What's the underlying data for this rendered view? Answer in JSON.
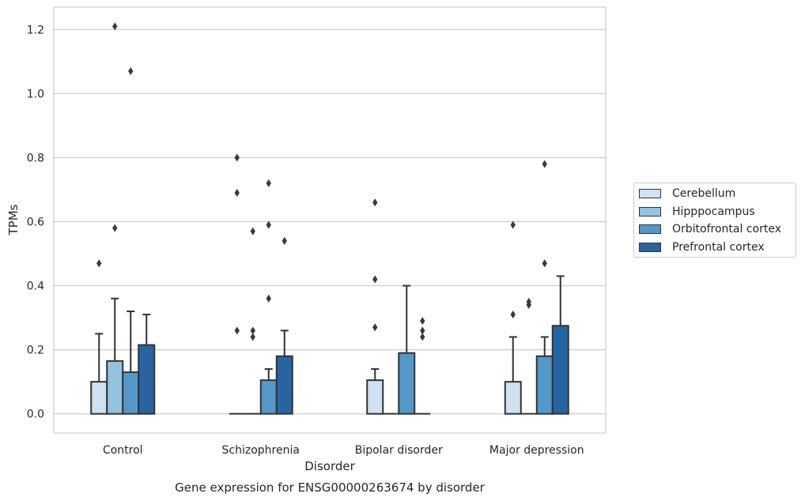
{
  "chart_data": {
    "type": "bar",
    "title": "Gene expression for ENSG00000263674 by disorder",
    "xlabel": "Disorder",
    "ylabel": "TPMs",
    "ylim": [
      -0.06,
      1.27
    ],
    "yticks": [
      "0.0",
      "0.2",
      "0.4",
      "0.6",
      "0.8",
      "1.0",
      "1.2"
    ],
    "categories": [
      "Control",
      "Schizophrenia",
      "Bipolar disorder",
      "Major depression"
    ],
    "grid": true,
    "legend_position": "right",
    "series": [
      {
        "name": "Cerebellum",
        "color": "#d0e1f1",
        "values": [
          0.1,
          0.0,
          0.105,
          0.1
        ],
        "whisker": [
          0.25,
          null,
          0.14,
          0.24
        ],
        "outliers": [
          [
            0.47
          ],
          [
            0.26,
            0.69,
            0.8
          ],
          [
            0.27,
            0.42,
            0.66
          ],
          [
            0.31,
            0.59
          ]
        ]
      },
      {
        "name": "Hipppocampus",
        "color": "#93c3df",
        "values": [
          0.165,
          0.0,
          0.0,
          0.0
        ],
        "whisker": [
          0.36,
          null,
          null,
          null
        ],
        "outliers": [
          [
            0.58,
            1.21
          ],
          [
            0.24,
            0.26,
            0.57
          ],
          [],
          [
            0.34,
            0.35
          ]
        ]
      },
      {
        "name": "Orbitofrontal cortex",
        "color": "#5398c8",
        "values": [
          0.13,
          0.105,
          0.19,
          0.18
        ],
        "whisker": [
          0.32,
          0.14,
          0.4,
          0.24
        ],
        "outliers": [
          [
            1.07
          ],
          [
            0.36,
            0.59,
            0.72
          ],
          [],
          [
            0.47,
            0.78
          ]
        ]
      },
      {
        "name": "Prefrontal cortex",
        "color": "#2764a2",
        "values": [
          0.215,
          0.18,
          0.0,
          0.275
        ],
        "whisker": [
          0.31,
          0.26,
          null,
          0.43
        ],
        "outliers": [
          [],
          [
            0.54
          ],
          [
            0.24,
            0.26,
            0.29
          ],
          []
        ]
      }
    ]
  }
}
